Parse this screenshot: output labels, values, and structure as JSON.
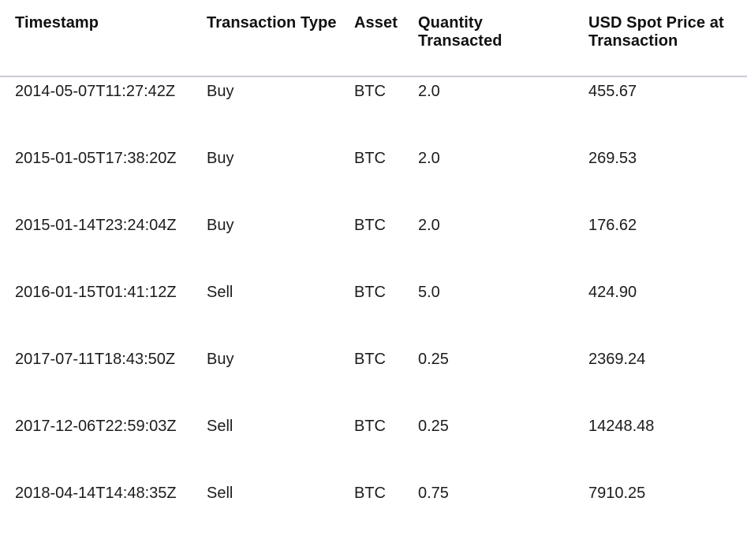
{
  "table": {
    "headers": [
      "Timestamp",
      "Transaction Type",
      "Asset",
      "Quantity Transacted",
      "USD Spot Price at Transaction"
    ],
    "rows": [
      [
        "2014-05-07T11:27:42Z",
        "Buy",
        "BTC",
        "2.0",
        "455.67"
      ],
      [
        "2015-01-05T17:38:20Z",
        "Buy",
        "BTC",
        "2.0",
        "269.53"
      ],
      [
        "2015-01-14T23:24:04Z",
        "Buy",
        "BTC",
        "2.0",
        "176.62"
      ],
      [
        "2016-01-15T01:41:12Z",
        "Sell",
        "BTC",
        "5.0",
        "424.90"
      ],
      [
        "2017-07-11T18:43:50Z",
        "Buy",
        "BTC",
        "0.25",
        "2369.24"
      ],
      [
        "2017-12-06T22:59:03Z",
        "Sell",
        "BTC",
        "0.25",
        "14248.48"
      ],
      [
        "2018-04-14T14:48:35Z",
        "Sell",
        "BTC",
        "0.75",
        "7910.25"
      ]
    ]
  }
}
